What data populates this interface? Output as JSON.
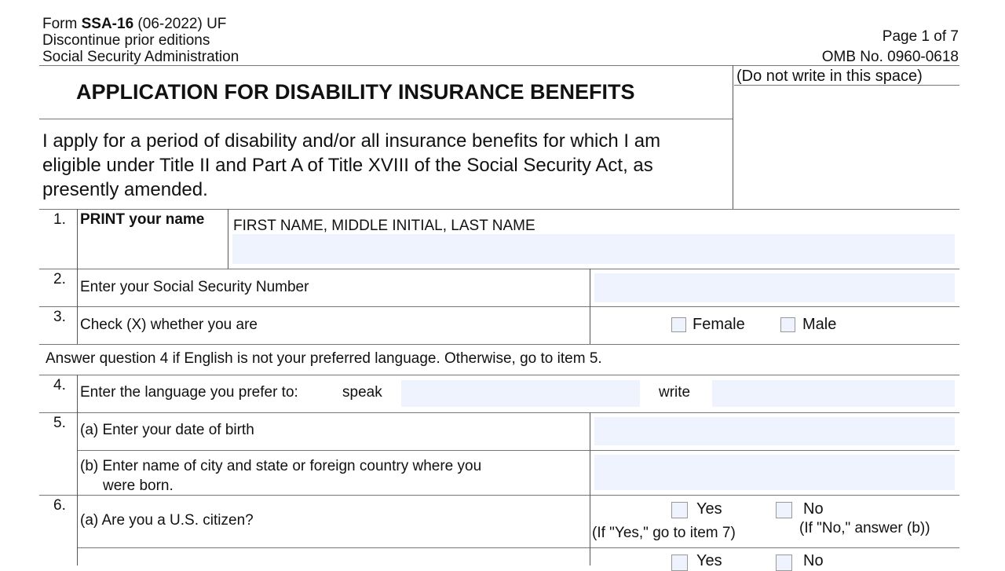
{
  "header": {
    "form_prefix": "Form ",
    "form_id": "SSA-16",
    "form_suffix": " (06-2022) UF",
    "discontinue": "Discontinue prior editions",
    "agency": "Social Security Administration",
    "page": "Page 1 of 7",
    "omb": "OMB No. 0960-0618",
    "do_not_write": "(Do not write in this space)"
  },
  "title": "APPLICATION FOR DISABILITY INSURANCE BENEFITS",
  "intro": [
    "I apply for a period of disability and/or all insurance benefits for which I am",
    "eligible under Title II and Part A of Title XVIII of the Social Security Act, as",
    "presently amended."
  ],
  "items": {
    "q1": {
      "num": "1.",
      "label": "PRINT your name",
      "hint": "FIRST NAME, MIDDLE INITIAL,  LAST NAME",
      "value": ""
    },
    "q2": {
      "num": "2.",
      "label": "Enter your Social Security Number",
      "value": ""
    },
    "q3": {
      "num": "3.",
      "label": "Check (X) whether you are",
      "female": "Female",
      "male": "Male"
    },
    "instruction": "Answer question 4 if English is not your preferred language.  Otherwise, go to item 5.",
    "q4": {
      "num": "4.",
      "label": "Enter the language you prefer to:",
      "speak": "speak",
      "write": "write",
      "speak_value": "",
      "write_value": ""
    },
    "q5": {
      "num": "5.",
      "a": "(a) Enter your date of birth",
      "b1": "(b) Enter name of city and state or foreign country where you",
      "b2": "were born.",
      "a_value": "",
      "b_value": ""
    },
    "q6": {
      "num": "6.",
      "a": "(a) Are you a U.S. citizen?",
      "yes": "Yes",
      "no": "No",
      "yes_note": "(If \"Yes,\" go to item 7)",
      "no_note": "(If \"No,\" answer (b))"
    }
  }
}
